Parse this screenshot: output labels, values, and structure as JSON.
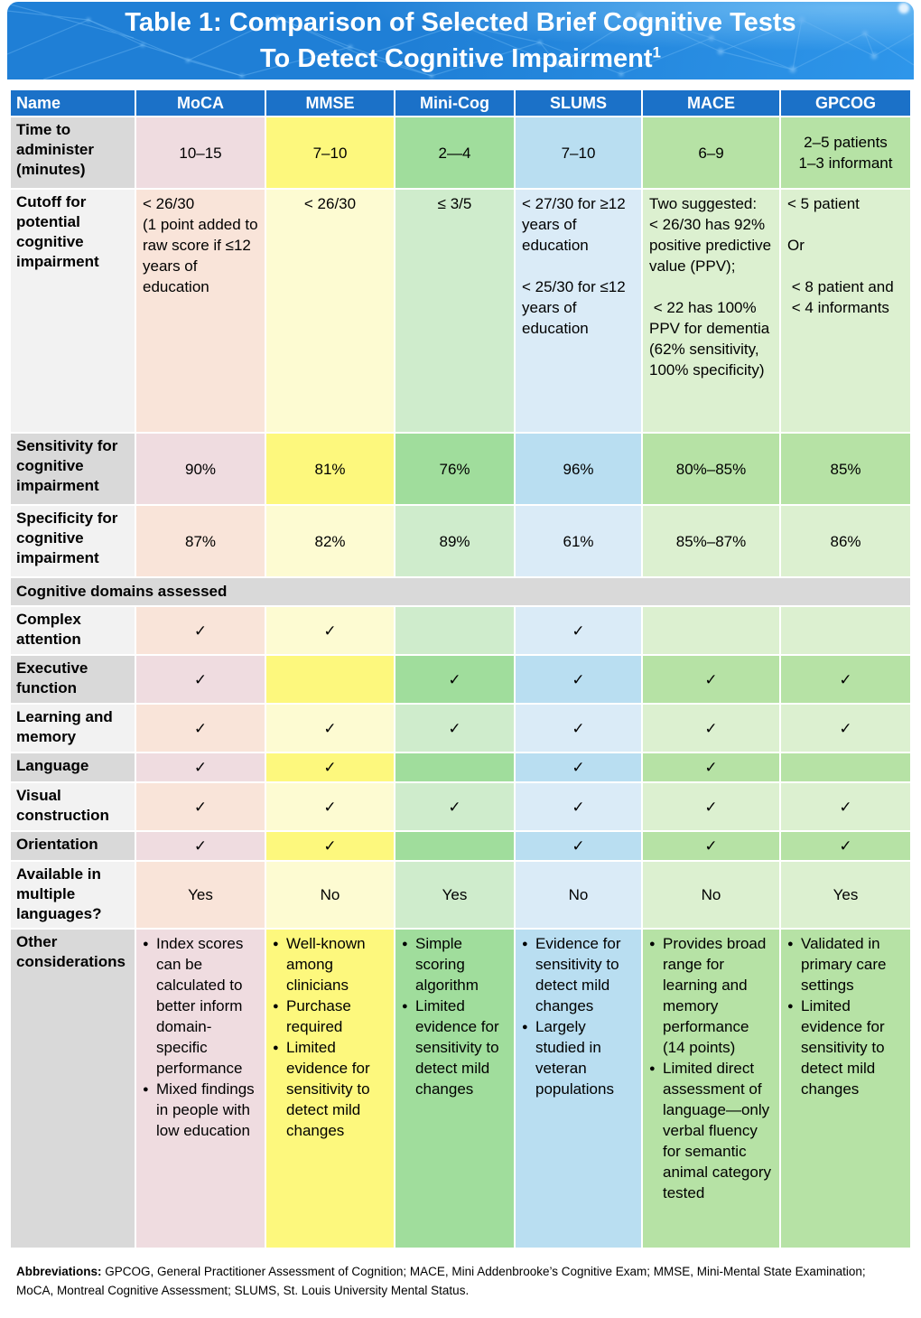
{
  "title": {
    "line1": "Table 1: Comparison of Selected Brief Cognitive Tests",
    "line2": "To Detect Cognitive Impairment",
    "superscript": "1"
  },
  "colors": {
    "header_row": "#1b71c8",
    "banner_base": "#1f7fd6",
    "banner_bright": "#2e96ea",
    "banner_line": "#6ab5f2"
  },
  "table": {
    "name_column": {
      "dark": "#d9d9d9",
      "light": "#f2f2f2"
    },
    "columns": [
      {
        "key": "name",
        "label": "Name"
      },
      {
        "key": "moca",
        "label": "MoCA",
        "dark": "#efdce0",
        "light": "#f9e4d9"
      },
      {
        "key": "mmse",
        "label": "MMSE",
        "dark": "#fdf87d",
        "light": "#fdfbd2"
      },
      {
        "key": "minicog",
        "label": "Mini-Cog",
        "dark": "#a0dd9c",
        "light": "#cfeccc"
      },
      {
        "key": "slums",
        "label": "SLUMS",
        "dark": "#b9def1",
        "light": "#daebf7"
      },
      {
        "key": "mace",
        "label": "MACE",
        "dark": "#b6e2a5",
        "light": "#dcf0d0"
      },
      {
        "key": "gpcog",
        "label": "GPCOG",
        "dark": "#b6e2a5",
        "light": "#dcf0d0"
      }
    ],
    "rows": [
      {
        "id": "time-to-administer",
        "label": "Time to administer (minutes)",
        "band": "dark",
        "valign": "middle",
        "align": "center",
        "cells": [
          "10–15",
          "7–10",
          "2—4",
          "7–10",
          "6–9",
          "2–5 patients\n1–3 informant"
        ]
      },
      {
        "id": "cutoff",
        "label": "Cutoff for potential cognitive impairment",
        "band": "light",
        "valign": "top",
        "align": [
          "left",
          "center",
          "center",
          "left",
          "left",
          "left"
        ],
        "cells": [
          "< 26/30\n(1 point added to raw score if ≤12 years of education",
          "< 26/30",
          "≤ 3/5",
          "< 27/30 for ≥12 years of education\n\n< 25/30 for ≤12 years of education",
          "Two suggested:\n< 26/30 has 92% positive predictive value (PPV);\n\n < 22 has 100% PPV for dementia\n(62% sensitivity, 100% specificity)",
          "< 5 patient\n\nOr\n\n < 8 patient and\n < 4 informants"
        ]
      },
      {
        "id": "sensitivity",
        "label": "Sensitivity for cognitive impairment",
        "band": "dark",
        "valign": "middle",
        "align": "center",
        "cells": [
          "90%",
          "81%",
          "76%",
          "96%",
          "80%–85%",
          "85%"
        ]
      },
      {
        "id": "specificity",
        "label": "Specificity for cognitive impairment",
        "band": "light",
        "valign": "middle",
        "align": "center",
        "cells": [
          "87%",
          "82%",
          "89%",
          "61%",
          "85%–87%",
          "86%"
        ]
      },
      {
        "id": "cognitive-domains",
        "section": true,
        "label": "Cognitive domains assessed"
      },
      {
        "id": "complex-attention",
        "label": "Complex attention",
        "band": "light",
        "valign": "middle",
        "align": "center",
        "cells": [
          "✓",
          "✓",
          "",
          "✓",
          "",
          ""
        ]
      },
      {
        "id": "executive-function",
        "label": "Executive function",
        "band": "dark",
        "valign": "middle",
        "align": "center",
        "cells": [
          "✓",
          "",
          "✓",
          "✓",
          "✓",
          "✓"
        ]
      },
      {
        "id": "learning-memory",
        "label": "Learning and memory",
        "band": "light",
        "valign": "middle",
        "align": "center",
        "cells": [
          "✓",
          "✓",
          "✓",
          "✓",
          "✓",
          "✓"
        ]
      },
      {
        "id": "language",
        "label": "Language",
        "band": "dark",
        "valign": "middle",
        "align": "center",
        "cells": [
          "✓",
          "✓",
          "",
          "✓",
          "✓",
          ""
        ]
      },
      {
        "id": "visual-construction",
        "label": "Visual construction",
        "band": "light",
        "valign": "middle",
        "align": "center",
        "cells": [
          "✓",
          "✓",
          "✓",
          "✓",
          "✓",
          "✓"
        ]
      },
      {
        "id": "orientation",
        "label": "Orientation",
        "band": "dark",
        "valign": "middle",
        "align": "center",
        "cells": [
          "✓",
          "✓",
          "",
          "✓",
          "✓",
          "✓"
        ]
      },
      {
        "id": "multiple-languages",
        "label": "Available in multiple languages?",
        "band": "light",
        "valign": "middle",
        "align": "center",
        "cells": [
          "Yes",
          "No",
          "Yes",
          "No",
          "No",
          "Yes"
        ]
      },
      {
        "id": "other-considerations",
        "label": "Other considerations",
        "band": "dark",
        "valign": "top",
        "align": "left",
        "cells": [
          [
            "Index scores can be calculated to better inform domain-specific performance",
            "Mixed findings in people with low education"
          ],
          [
            "Well-known among clinicians",
            "Purchase required",
            "Limited evidence for sensitivity to detect mild changes"
          ],
          [
            "Simple scoring algorithm",
            "Limited evidence for sensitivity to detect mild changes"
          ],
          [
            "Evidence for sensitivity to detect mild changes",
            "Largely studied in veteran populations"
          ],
          [
            "Provides broad range for learning and memory performance (14 points)",
            "Limited direct assessment of language—only verbal fluency for semantic animal category tested"
          ],
          [
            "Validated in primary care settings",
            "Limited evidence for sensitivity to detect mild changes"
          ]
        ]
      }
    ]
  },
  "footer": {
    "label": "Abbreviations:",
    "text": "GPCOG, General Practitioner Assessment of Cognition; MACE, Mini Addenbrooke’s Cognitive Exam; MMSE, Mini-Mental State Examination; MoCA, Montreal Cognitive Assessment; SLUMS, St. Louis University Mental Status."
  }
}
